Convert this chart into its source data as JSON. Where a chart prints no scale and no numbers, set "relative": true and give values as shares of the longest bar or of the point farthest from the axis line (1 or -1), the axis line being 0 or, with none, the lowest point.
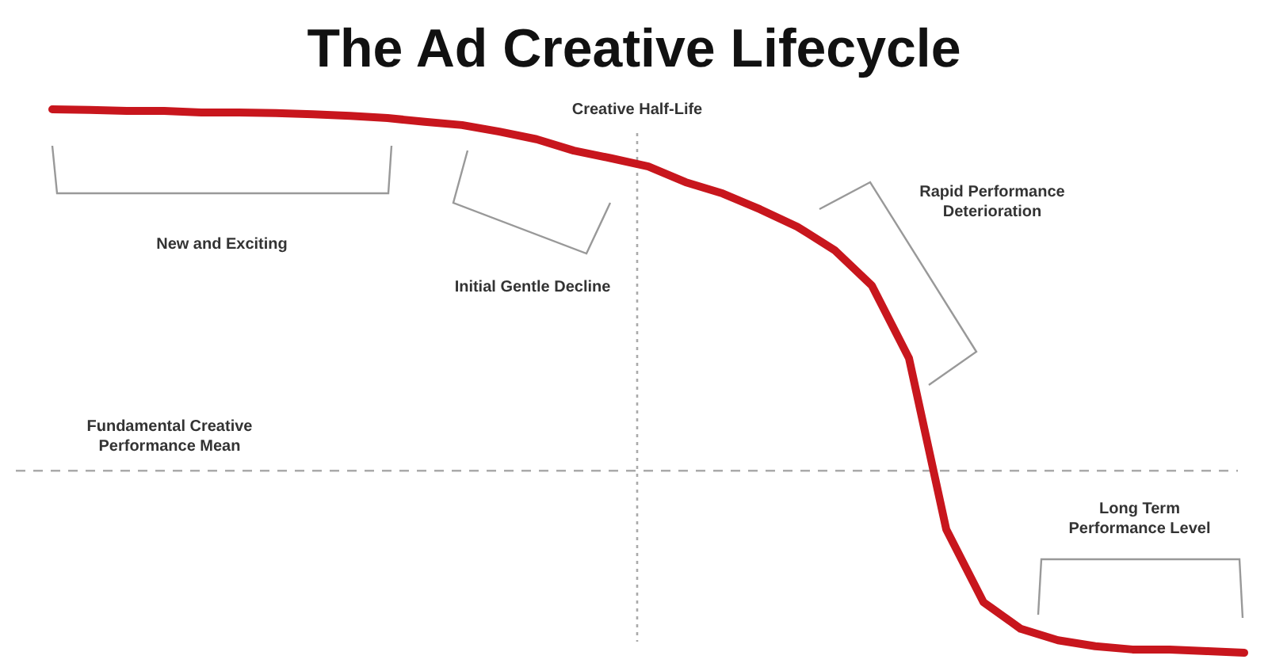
{
  "chart_data": {
    "type": "line",
    "title": "The Ad Creative Lifecycle",
    "relative": true,
    "marker": "none",
    "line_style": "solid",
    "categories": [
      null,
      null,
      null,
      null,
      null,
      null,
      null,
      null,
      null,
      null,
      null,
      null,
      null,
      null,
      null,
      null,
      null,
      null,
      null,
      null,
      null,
      null,
      null,
      null,
      null,
      null,
      null,
      null,
      null,
      null,
      null,
      null,
      null
    ],
    "series": [
      {
        "color": "#c8161d",
        "values": [
          1.0,
          0.999,
          0.997,
          0.997,
          0.994,
          0.994,
          0.993,
          0.991,
          0.988,
          0.984,
          0.977,
          0.971,
          0.959,
          0.945,
          0.924,
          0.91,
          0.895,
          0.866,
          0.845,
          0.816,
          0.784,
          0.741,
          0.676,
          0.542,
          0.227,
          0.093,
          0.044,
          0.023,
          0.012,
          0.006,
          0.006,
          0.003,
          0.0
        ]
      }
    ],
    "ref_lines": [
      {
        "axis": "y",
        "value": 0.335,
        "label": "Fundamental Creative\nPerformance Mean",
        "color": "#aaaaaa",
        "line_style": "dashed"
      }
    ],
    "annotations": [
      "Creative Half-Life",
      "New and Exciting",
      "Initial Gentle Decline",
      "Rapid Performance\nDeterioration",
      "Long Term\nPerformance Level"
    ]
  }
}
